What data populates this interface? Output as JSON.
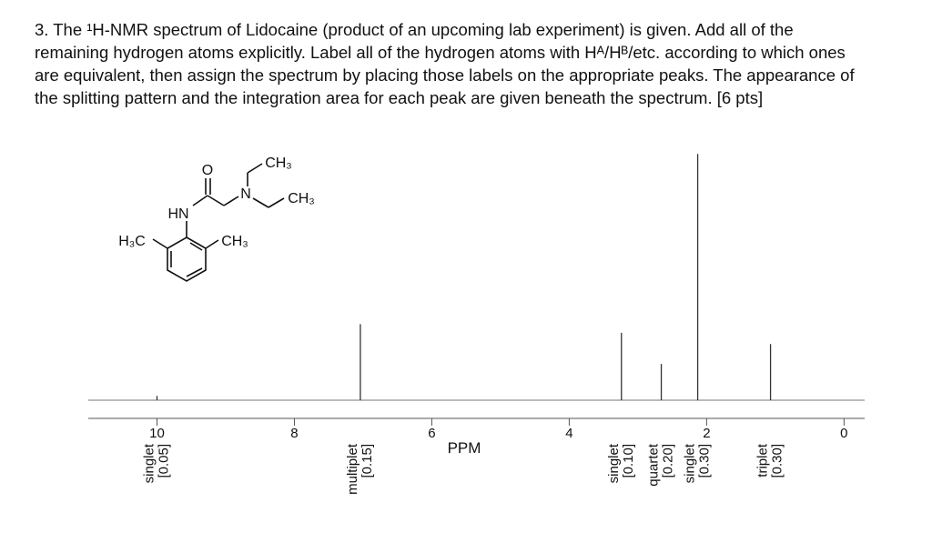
{
  "question": {
    "lines": [
      "3. The ¹H-NMR spectrum of Lidocaine (product of an upcoming lab experiment) is given. Add all of the",
      "remaining hydrogen atoms explicitly. Label all of the hydrogen atoms with Hᴬ/Hᴮ/etc. according to which ones",
      "are equivalent, then assign the spectrum by placing those labels on the appropriate peaks. The appearance of",
      "the splitting pattern and the integration area for each peak are given beneath the spectrum. [6 pts]"
    ]
  },
  "molecule": {
    "labels": {
      "o": "O",
      "n": "N",
      "hn": "HN",
      "h3c": "H₃C",
      "ch3_ring": "CH₃",
      "ch3_top": "CH₃",
      "ch3_right": "CH₃"
    }
  },
  "chart_data": {
    "type": "nmr",
    "x_label": "PPM",
    "xlim": [
      11,
      -0.3
    ],
    "xticks": [
      10,
      8,
      6,
      4,
      2,
      0
    ],
    "ylim": [
      0,
      300
    ],
    "x": [
      10,
      7.04,
      3.24,
      2.66,
      2.13,
      1.07
    ],
    "values": [
      5,
      88,
      78,
      42,
      285,
      65
    ],
    "patterns": [
      "singlet",
      "multiplet",
      "singlet",
      "quartet",
      "singlet",
      "triplet"
    ],
    "integrations": [
      0.05,
      0.15,
      0.1,
      0.2,
      0.3,
      0.3
    ],
    "integration_labels": [
      "[0.05]",
      "[0.15]",
      "[0.10]",
      "[0.20]",
      "[0.30]",
      "[0.30]"
    ],
    "color": "#333333"
  }
}
